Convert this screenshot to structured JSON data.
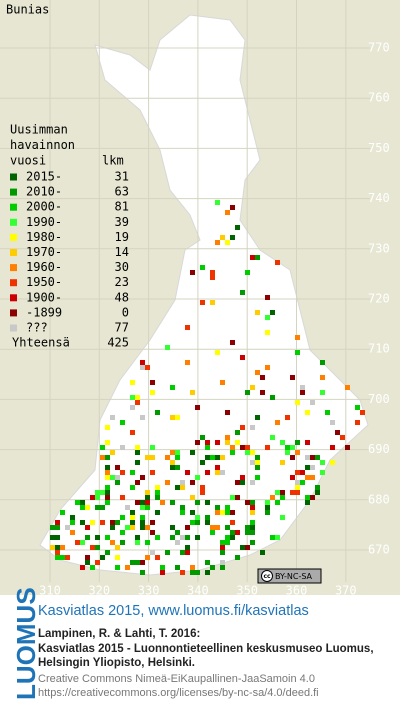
{
  "title": "Bunias",
  "legend": {
    "heading": [
      "Uusimman",
      "havainnon",
      "vuosi"
    ],
    "count_heading": "lkm",
    "rows": [
      {
        "label": "2015-",
        "count": 31,
        "color": "#006400"
      },
      {
        "label": "2010-",
        "count": 63,
        "color": "#009900"
      },
      {
        "label": "2000-",
        "count": 81,
        "color": "#00cc00"
      },
      {
        "label": "1990-",
        "count": 39,
        "color": "#33ff33"
      },
      {
        "label": "1980-",
        "count": 19,
        "color": "#ffff00"
      },
      {
        "label": "1970-",
        "count": 14,
        "color": "#ffcc00"
      },
      {
        "label": "1960-",
        "count": 30,
        "color": "#ff7f00"
      },
      {
        "label": "1950-",
        "count": 23,
        "color": "#ee3300"
      },
      {
        "label": "1900-",
        "count": 48,
        "color": "#cc0000"
      },
      {
        "label": "-1899",
        "count": 0,
        "color": "#8b0000"
      },
      {
        "label": "???",
        "count": 77,
        "color": "#c8c8c8"
      }
    ],
    "total": {
      "label": "Yhteensä",
      "count": 425
    }
  },
  "grid": {
    "y_labels": [
      770,
      760,
      750,
      740,
      730,
      720,
      710,
      700,
      690,
      680,
      670
    ],
    "x_labels": [
      310,
      320,
      330,
      340,
      350,
      360,
      370
    ]
  },
  "license_badge": "BY-NC-SA",
  "footer": {
    "logo": "LUOMUS",
    "headline": "Kasviatlas 2015, www.luomus.fi/kasviatlas",
    "citation": [
      "Lampinen, R. & Lahti, T. 2016:",
      "Kasviatlas 2015 - Luonnontieteellinen keskusmuseo Luomus,",
      "Helsingin Yliopisto, Helsinki."
    ],
    "license": [
      "Creative Commons Nimeä-EiKaupallinen-JaaSamoin 4.0",
      "https://creativecommons.org/licenses/by-nc-sa/4.0/deed.fi"
    ]
  }
}
